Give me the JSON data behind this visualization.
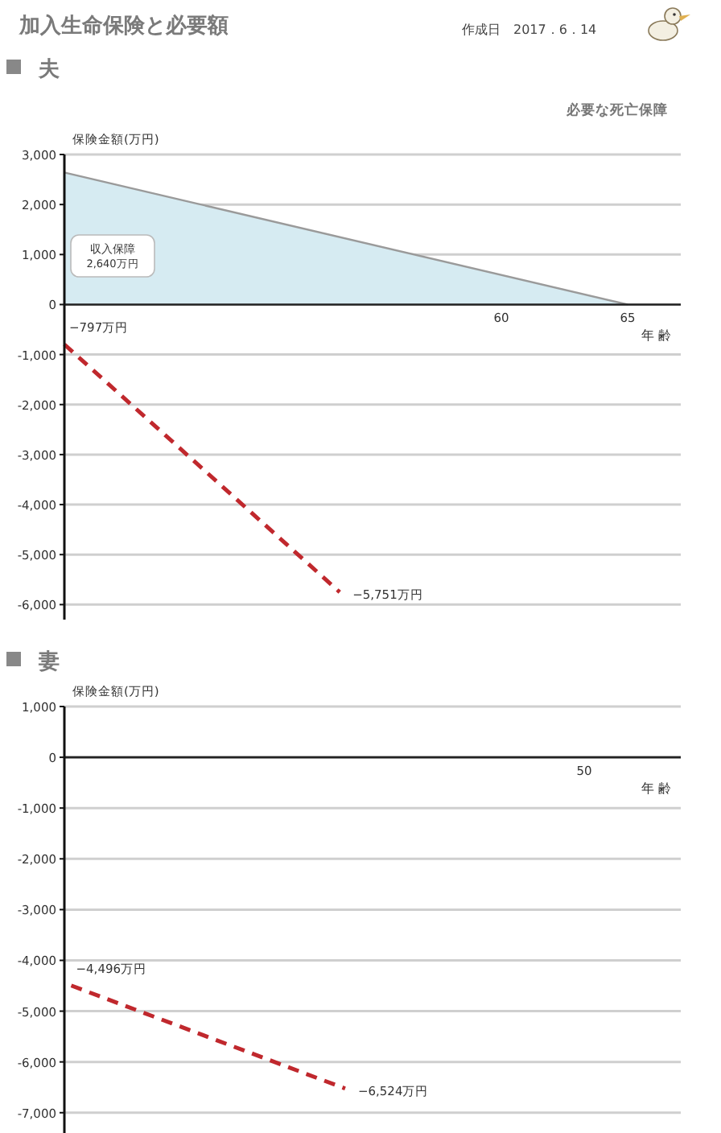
{
  "chart_data": [
    {
      "type": "line",
      "title": "加入生命保険と必要額",
      "subtitle": "夫",
      "ylabel": "保険金額(万円)",
      "xlabel": "年 齢",
      "annotations": [
        "作成日　2017．6．14",
        "必要な死亡保障",
        "収入保障 2,640万円"
      ],
      "xlim": [
        42.7,
        67.1
      ],
      "xticks": [
        60,
        65
      ],
      "ylim": [
        -6300,
        3000
      ],
      "yticks": [
        {
          "value": 3000,
          "label": "3,000"
        },
        {
          "value": 2000,
          "label": "2,000"
        },
        {
          "value": 1000,
          "label": "1,000"
        },
        0,
        {
          "value": -1000,
          "label": "-1,000"
        },
        {
          "value": -2000,
          "label": "-2,000"
        },
        {
          "value": -3000,
          "label": "-3,000"
        },
        {
          "value": -4000,
          "label": "-4,000"
        },
        {
          "value": -5000,
          "label": "-5,000"
        },
        {
          "value": -6000,
          "label": "-6,000"
        }
      ],
      "grid": "y",
      "marker": "none",
      "series": [
        {
          "type": "area",
          "color": "#d6ebf2",
          "x": [
            42.7,
            65
          ],
          "values": [
            2640,
            0
          ]
        },
        {
          "type": "line",
          "color": "#c0282d",
          "line_style": "dashed",
          "x": [
            42.7,
            53.6
          ],
          "values": [
            -797,
            -5751
          ],
          "value_labels": [
            "−797万円",
            "−5,751万円"
          ]
        }
      ]
    },
    {
      "type": "line",
      "title": "妻",
      "ylabel": "保険金額(万円)",
      "xlabel": "年 齢",
      "annotations": [
        "50"
      ],
      "categories": [
        null,
        null,
        null,
        null,
        null,
        null,
        null,
        null,
        null,
        null,
        null,
        null,
        null,
        null,
        null,
        null,
        null,
        null,
        null,
        null,
        null,
        null,
        null,
        null,
        null,
        null,
        null,
        null,
        null,
        null,
        null,
        null,
        null,
        null,
        null,
        null,
        null,
        null,
        null,
        null,
        null,
        null,
        null,
        null,
        null
      ],
      "ylim": [
        -7400,
        1000
      ],
      "yticks": [
        {
          "value": 1000,
          "label": "1,000"
        },
        0,
        {
          "value": -1000,
          "label": "-1,000"
        },
        {
          "value": -2000,
          "label": "-2,000"
        },
        {
          "value": -3000,
          "label": "-3,000"
        },
        {
          "value": -4000,
          "label": "-4,000"
        },
        {
          "value": -5000,
          "label": "-5,000"
        },
        {
          "value": -6000,
          "label": "-6,000"
        },
        {
          "value": -7000,
          "label": "-7,000"
        }
      ],
      "grid": "y",
      "marker": "none",
      "series": [
        {
          "type": "line",
          "color": "#c0282d",
          "line_style": "dashed",
          "values": [
            -4496,
            null,
            null,
            null,
            null,
            null,
            null,
            null,
            null,
            null,
            null,
            null,
            null,
            null,
            null,
            null,
            null,
            null,
            null,
            null,
            -6524,
            null,
            null,
            null,
            null,
            null,
            null,
            null,
            null,
            null,
            null,
            null,
            null,
            null,
            null,
            null,
            null,
            null,
            null,
            null,
            null,
            null,
            null,
            null,
            null
          ],
          "value_labels": [
            "−4,496万円",
            null,
            null,
            null,
            null,
            null,
            null,
            null,
            null,
            null,
            null,
            null,
            null,
            null,
            null,
            null,
            null,
            null,
            null,
            null,
            "−6,524万円",
            null,
            null,
            null,
            null,
            null,
            null,
            null,
            null,
            null,
            null,
            null,
            null,
            null,
            null,
            null,
            null,
            null,
            null,
            null,
            null,
            null,
            null,
            null,
            null
          ]
        }
      ]
    }
  ]
}
